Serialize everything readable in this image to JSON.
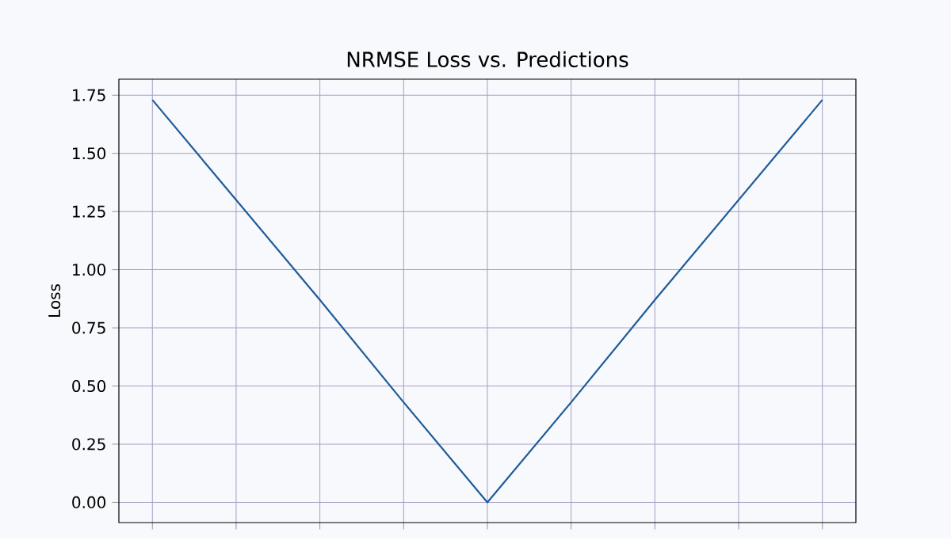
{
  "chart_data": {
    "type": "line",
    "title": "NRMSE Loss vs. Predictions",
    "ylabel": "Loss",
    "categories": [
      null,
      null,
      null,
      null,
      null,
      null,
      null,
      null,
      null
    ],
    "values": [
      1.73,
      1.3,
      0.87,
      0.43,
      0,
      0.43,
      0.87,
      1.3,
      1.73
    ],
    "color": "#1f5c99",
    "ylim": [
      -0.087,
      1.819
    ],
    "yticks": [
      {
        "value": 0,
        "label": "0.00"
      },
      {
        "value": 0.25,
        "label": "0.25"
      },
      {
        "value": 0.5,
        "label": "0.50"
      },
      {
        "value": 0.75,
        "label": "0.75"
      },
      {
        "value": 1,
        "label": "1.00"
      },
      {
        "value": 1.25,
        "label": "1.25"
      },
      {
        "value": 1.5,
        "label": "1.50"
      },
      {
        "value": 1.75,
        "label": "1.75"
      }
    ],
    "grid": true,
    "tick_labels": "y",
    "marker": "none",
    "line_style": "solid"
  }
}
